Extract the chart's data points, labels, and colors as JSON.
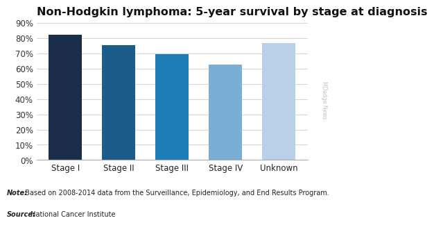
{
  "title": "Non-Hodgkin lymphoma: 5-year survival by stage at diagnosis",
  "categories": [
    "Stage I",
    "Stage II",
    "Stage III",
    "Stage IV",
    "Unknown"
  ],
  "values": [
    82,
    75.5,
    69.5,
    62.5,
    76.5
  ],
  "bar_colors": [
    "#1a2e4a",
    "#1a5c8a",
    "#1e7db8",
    "#7baed6",
    "#b8d0e8"
  ],
  "ylim": [
    0,
    90
  ],
  "yticks": [
    0,
    10,
    20,
    30,
    40,
    50,
    60,
    70,
    80,
    90
  ],
  "note_bold": "Note:",
  "note_rest": " Based on 2008-2014 data from the Surveillance, Epidemiology, and End Results Program.",
  "source_bold": "Source:",
  "source_rest": " National Cancer Institute",
  "watermark": "MDedge News",
  "background_color": "#ffffff",
  "grid_color": "#cccccc",
  "title_fontsize": 11.5,
  "tick_fontsize": 8.5,
  "note_fontsize": 7.0
}
